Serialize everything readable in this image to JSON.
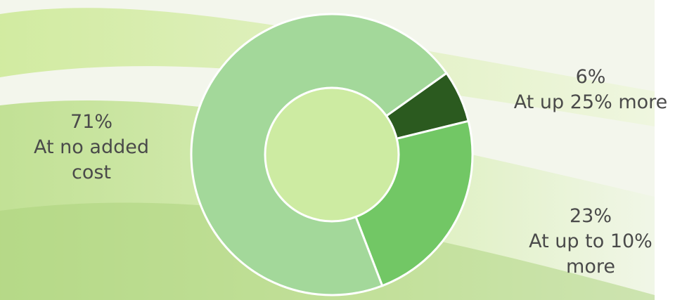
{
  "chart_data": {
    "type": "donut",
    "categories": [
      "At up 25% more",
      "At up to 10% more",
      "At no added cost"
    ],
    "values": [
      6,
      23,
      71
    ],
    "value_labels": [
      "6%",
      "23%",
      "71%"
    ],
    "colors": [
      "#2b5a1f",
      "#72c765",
      "#a3d89a"
    ]
  }
}
